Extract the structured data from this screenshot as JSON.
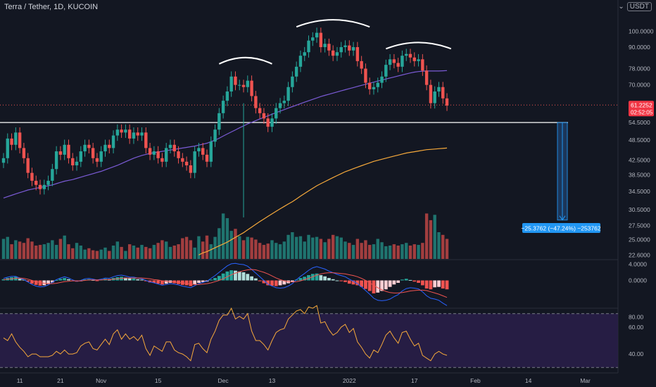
{
  "header": {
    "symbol": "Terra / Tether, 1D, KUCOIN",
    "currency": "USDT",
    "currency_arrow": "⌄"
  },
  "price_badge": {
    "price": "61.2252",
    "countdown": "02:52:05",
    "color": "#f23645"
  },
  "measure": {
    "label": "−25.3762 (−47.24%) −253762",
    "color": "#2196f3"
  },
  "colors": {
    "up": "#26a69a",
    "down": "#ef5350",
    "ma_short": "#7b5bd6",
    "ma_long": "#f6a93b",
    "support": "#ffffff",
    "rsi_bg": "#2a1e4a",
    "rsi_line": "#f6a93b"
  },
  "chart_data": [
    {
      "type": "candlestick",
      "ylim": [
        22,
        107
      ],
      "y_scale": "log",
      "y_ticks": [
        "100.0000",
        "90.0000",
        "78.0000",
        "70.0000",
        "61.2252",
        "54.5000",
        "48.5000",
        "42.5000",
        "38.5000",
        "34.5000",
        "30.5000",
        "27.5000",
        "25.0000",
        "22.6000"
      ],
      "y_tick_values": [
        100,
        90,
        78,
        70,
        61.2252,
        54.5,
        48.5,
        42.5,
        38.5,
        34.5,
        30.5,
        27.5,
        25,
        22.6
      ],
      "x_ticks": [
        {
          "label": "11",
          "i": 4
        },
        {
          "label": "21",
          "i": 14
        },
        {
          "label": "Nov",
          "i": 24
        },
        {
          "label": "15",
          "i": 38
        },
        {
          "label": "Dec",
          "i": 54
        },
        {
          "label": "13",
          "i": 66
        },
        {
          "label": "2022",
          "i": 85
        },
        {
          "label": "17",
          "i": 101
        },
        {
          "label": "Feb",
          "i": 116
        },
        {
          "label": "14",
          "i": 129
        },
        {
          "label": "Mar",
          "i": 143
        }
      ],
      "close": [
        43,
        49,
        47,
        51,
        46,
        43,
        39,
        37,
        36,
        35,
        36,
        37,
        40,
        45,
        44,
        47,
        43,
        41,
        42,
        45,
        47,
        46,
        43,
        42,
        45,
        47,
        46,
        50,
        52,
        51,
        52,
        49,
        51,
        50,
        51,
        46,
        44,
        45,
        43,
        42,
        46,
        47,
        45,
        43,
        42,
        41,
        39,
        45,
        46,
        44,
        42,
        48,
        52,
        58,
        63,
        67,
        74,
        70,
        70,
        69,
        72,
        65,
        60,
        58,
        56,
        53,
        56,
        60,
        62,
        63,
        69,
        74,
        79,
        85,
        87,
        94,
        96,
        99,
        90,
        92,
        88,
        85,
        87,
        90,
        91,
        88,
        90,
        82,
        78,
        71,
        68,
        69,
        71,
        74,
        80,
        83,
        81,
        79,
        85,
        86,
        84,
        82,
        83,
        77,
        70,
        62,
        67,
        69,
        64,
        61
      ],
      "ma_short": [
        33,
        33.3,
        33.6,
        33.9,
        34.2,
        34.5,
        34.8,
        35,
        35.2,
        35.4,
        35.6,
        35.8,
        36,
        36.3,
        36.6,
        36.9,
        37.1,
        37.3,
        37.6,
        37.9,
        38.2,
        38.5,
        38.8,
        39.1,
        39.4,
        39.8,
        40.2,
        40.6,
        41,
        41.5,
        42,
        42.5,
        43,
        43.4,
        43.8,
        44.1,
        44.4,
        44.6,
        44.8,
        45,
        45.2,
        45.4,
        45.6,
        45.8,
        46,
        46.2,
        46.4,
        46.6,
        46.9,
        47.2,
        47.5,
        48,
        48.5,
        49.1,
        49.8,
        50.5,
        51.2,
        51.9,
        52.6,
        53.3,
        54,
        54.6,
        55.2,
        55.8,
        56.4,
        57,
        57.6,
        58.2,
        58.8,
        59.4,
        60,
        60.6,
        61.2,
        61.8,
        62.4,
        63,
        63.6,
        64.2,
        64.8,
        65.3,
        65.8,
        66.3,
        66.8,
        67.3,
        67.8,
        68.3,
        68.8,
        69.3,
        69.8,
        70.3,
        70.8,
        71.3,
        71.8,
        72.3,
        72.8,
        73.3,
        73.8,
        74.3,
        74.8,
        75.3,
        75.8,
        76.2,
        76.5,
        76.7,
        76.8,
        76.8,
        76.8,
        76.8,
        76.9,
        77
      ],
      "ma_long": [
        null,
        null,
        null,
        null,
        null,
        null,
        null,
        null,
        null,
        null,
        null,
        null,
        null,
        null,
        null,
        null,
        null,
        null,
        null,
        null,
        null,
        null,
        null,
        null,
        null,
        null,
        null,
        null,
        null,
        null,
        null,
        null,
        null,
        null,
        null,
        null,
        null,
        null,
        null,
        null,
        null,
        null,
        null,
        null,
        null,
        null,
        null,
        null,
        22.6,
        22.9,
        23.1,
        23.4,
        23.7,
        24,
        24.3,
        24.6,
        25,
        25.4,
        25.8,
        26.2,
        26.7,
        27.2,
        27.7,
        28.2,
        28.7,
        29.2,
        29.7,
        30.2,
        30.7,
        31.2,
        31.7,
        32.2,
        32.8,
        33.4,
        34,
        34.6,
        35.2,
        35.8,
        36.3,
        36.8,
        37.3,
        37.8,
        38.3,
        38.8,
        39.3,
        39.7,
        40.1,
        40.5,
        40.9,
        41.3,
        41.7,
        42.1,
        42.4,
        42.7,
        43,
        43.3,
        43.6,
        43.9,
        44.2,
        44.5,
        44.7,
        44.9,
        45.1,
        45.3,
        45.5,
        45.6,
        45.7,
        45.8,
        45.9,
        46
      ],
      "volume": [
        0.3,
        0.33,
        0.22,
        0.28,
        0.26,
        0.24,
        0.31,
        0.26,
        0.2,
        0.21,
        0.22,
        0.24,
        0.28,
        0.21,
        0.3,
        0.35,
        0.22,
        0.16,
        0.24,
        0.2,
        0.14,
        0.16,
        0.13,
        0.12,
        0.14,
        0.17,
        0.12,
        0.2,
        0.26,
        0.18,
        0.12,
        0.22,
        0.2,
        0.17,
        0.21,
        0.18,
        0.16,
        0.21,
        0.24,
        0.28,
        0.26,
        0.18,
        0.2,
        0.22,
        0.31,
        0.33,
        0.28,
        0.17,
        0.34,
        0.26,
        0.35,
        0.22,
        0.33,
        0.46,
        0.68,
        0.61,
        0.42,
        0.45,
        0.34,
        0.28,
        0.33,
        0.32,
        0.29,
        0.24,
        0.21,
        0.23,
        0.28,
        0.24,
        0.22,
        0.26,
        0.36,
        0.4,
        0.33,
        0.34,
        0.26,
        0.36,
        0.32,
        0.33,
        0.3,
        0.25,
        0.3,
        0.36,
        0.34,
        0.32,
        0.26,
        0.24,
        0.21,
        0.3,
        0.24,
        0.28,
        0.21,
        0.22,
        0.3,
        0.25,
        0.19,
        0.2,
        0.22,
        0.2,
        0.22,
        0.24,
        0.2,
        0.22,
        0.21,
        0.24,
        0.68,
        0.58,
        0.66,
        0.4,
        0.36,
        0.3
      ]
    },
    {
      "type": "bar",
      "indicator": "MACD",
      "y_ticks": [
        "4.0000",
        "0.0000"
      ],
      "histogram": [
        0.3,
        0.6,
        0.8,
        0.9,
        0.4,
        0.2,
        -0.3,
        -0.8,
        -1.1,
        -1.3,
        -1.2,
        -0.9,
        -0.5,
        0.1,
        0.4,
        0.6,
        0.3,
        -0.1,
        -0.3,
        -0.2,
        0.2,
        0.3,
        0.1,
        -0.1,
        0.2,
        0.4,
        0.3,
        0.6,
        0.8,
        0.9,
        0.7,
        0.5,
        0.5,
        0.3,
        0.2,
        -0.2,
        -0.5,
        -0.6,
        -0.8,
        -1,
        -0.8,
        -0.6,
        -0.7,
        -0.9,
        -1.1,
        -1.2,
        -1.4,
        -1.0,
        -0.6,
        -0.4,
        -0.3,
        0.2,
        0.6,
        1.1,
        1.7,
        2.2,
        2.5,
        2.4,
        2.2,
        2.0,
        1.6,
        1.0,
        0.5,
        -0.2,
        -0.7,
        -1.2,
        -1.3,
        -1.4,
        -1.2,
        -1.0,
        -0.7,
        -0.4,
        0.2,
        0.6,
        0.9,
        1.3,
        1.6,
        1.7,
        1.3,
        1.0,
        0.6,
        0.3,
        0,
        -0.2,
        -0.4,
        -0.8,
        -1.0,
        -1.2,
        -1.6,
        -2.1,
        -2.6,
        -3.2,
        -3.0,
        -2.6,
        -2.2,
        -1.6,
        -1.0,
        -0.6,
        0.2,
        0.4,
        0.1,
        -0.3,
        -0.6,
        -1.2,
        -2.0,
        -2.2,
        -1.7,
        -1.6,
        -2.0,
        -2.2
      ],
      "macd": [
        0.5,
        0.8,
        1.0,
        1.0,
        0.6,
        0.2,
        -0.4,
        -1.0,
        -1.4,
        -1.6,
        -1.5,
        -1.1,
        -0.5,
        0.2,
        0.6,
        0.9,
        0.6,
        0.1,
        -0.2,
        0,
        0.4,
        0.5,
        0.3,
        0.1,
        0.3,
        0.6,
        0.5,
        0.9,
        1.2,
        1.3,
        1.1,
        0.8,
        0.8,
        0.6,
        0.4,
        0,
        -0.4,
        -0.6,
        -0.9,
        -1.2,
        -1.0,
        -0.8,
        -0.9,
        -1.1,
        -1.4,
        -1.6,
        -1.8,
        -1.3,
        -0.8,
        -0.5,
        -0.2,
        0.5,
        1.2,
        2.0,
        2.8,
        3.6,
        4.1,
        4.2,
        4.0,
        3.9,
        3.5,
        2.7,
        1.8,
        0.9,
        0,
        -0.9,
        -1.4,
        -1.8,
        -1.9,
        -1.8,
        -1.4,
        -0.8,
        0.2,
        1.0,
        1.7,
        2.5,
        3.1,
        3.4,
        3.1,
        2.8,
        2.3,
        1.9,
        1.5,
        1.2,
        0.9,
        0.3,
        -0.2,
        -0.8,
        -1.6,
        -2.5,
        -3.4,
        -4.4,
        -4.9,
        -5.0,
        -4.9,
        -4.6,
        -4.0,
        -3.5,
        -2.6,
        -2.0,
        -1.8,
        -1.9,
        -2.1,
        -2.8,
        -3.8,
        -4.4,
        -4.6,
        -4.9,
        -5.6,
        -6.2
      ],
      "signal": [
        0.2,
        0.3,
        0.4,
        0.5,
        0.6,
        0.5,
        0.3,
        0,
        -0.3,
        -0.5,
        -0.7,
        -0.8,
        -0.8,
        -0.7,
        -0.5,
        -0.3,
        -0.2,
        -0.1,
        -0.1,
        -0.1,
        0,
        0.1,
        0.1,
        0.1,
        0.1,
        0.2,
        0.2,
        0.3,
        0.4,
        0.5,
        0.6,
        0.6,
        0.6,
        0.6,
        0.6,
        0.5,
        0.4,
        0.2,
        0.1,
        -0.1,
        -0.2,
        -0.3,
        -0.4,
        -0.5,
        -0.6,
        -0.7,
        -0.9,
        -1.0,
        -1.0,
        -0.9,
        -0.8,
        -0.6,
        -0.3,
        0,
        0.4,
        0.9,
        1.4,
        1.8,
        2.1,
        2.4,
        2.6,
        2.7,
        2.6,
        2.3,
        2.0,
        1.6,
        1.1,
        0.6,
        0.2,
        -0.1,
        -0.3,
        -0.4,
        -0.3,
        -0.1,
        0.2,
        0.5,
        0.9,
        1.3,
        1.6,
        1.8,
        1.9,
        1.9,
        1.8,
        1.7,
        1.6,
        1.4,
        1.2,
        0.9,
        0.5,
        0,
        -0.6,
        -1.2,
        -1.8,
        -2.3,
        -2.7,
        -3.0,
        -3.1,
        -3.1,
        -3.0,
        -2.8,
        -2.6,
        -2.5,
        -2.4,
        -2.4,
        -2.5,
        -2.8,
        -3.1,
        -3.4,
        -3.8,
        -4.2
      ]
    },
    {
      "type": "line",
      "indicator": "RSI",
      "y_ticks": [
        "80.00",
        "60.00",
        "40.00"
      ],
      "ylim": [
        27,
        73
      ],
      "band": [
        30,
        70
      ],
      "values": [
        52,
        50,
        55,
        49,
        45,
        42,
        38,
        40,
        40,
        38,
        38,
        38,
        39,
        42,
        40,
        43,
        40,
        40,
        41,
        46,
        48,
        49,
        44,
        43,
        47,
        51,
        47,
        55,
        58,
        51,
        55,
        51,
        53,
        50,
        54,
        44,
        39,
        46,
        44,
        42,
        49,
        49,
        43,
        41,
        40,
        38,
        35,
        47,
        48,
        44,
        41,
        51,
        57,
        65,
        69,
        69,
        74,
        66,
        68,
        66,
        70,
        57,
        50,
        50,
        47,
        43,
        50,
        56,
        58,
        59,
        66,
        69,
        72,
        73,
        70,
        75,
        74,
        76,
        63,
        64,
        58,
        54,
        56,
        60,
        62,
        56,
        59,
        49,
        45,
        40,
        37,
        43,
        41,
        47,
        54,
        57,
        52,
        48,
        56,
        57,
        51,
        46,
        48,
        39,
        37,
        35,
        40,
        42,
        40,
        39
      ]
    }
  ]
}
